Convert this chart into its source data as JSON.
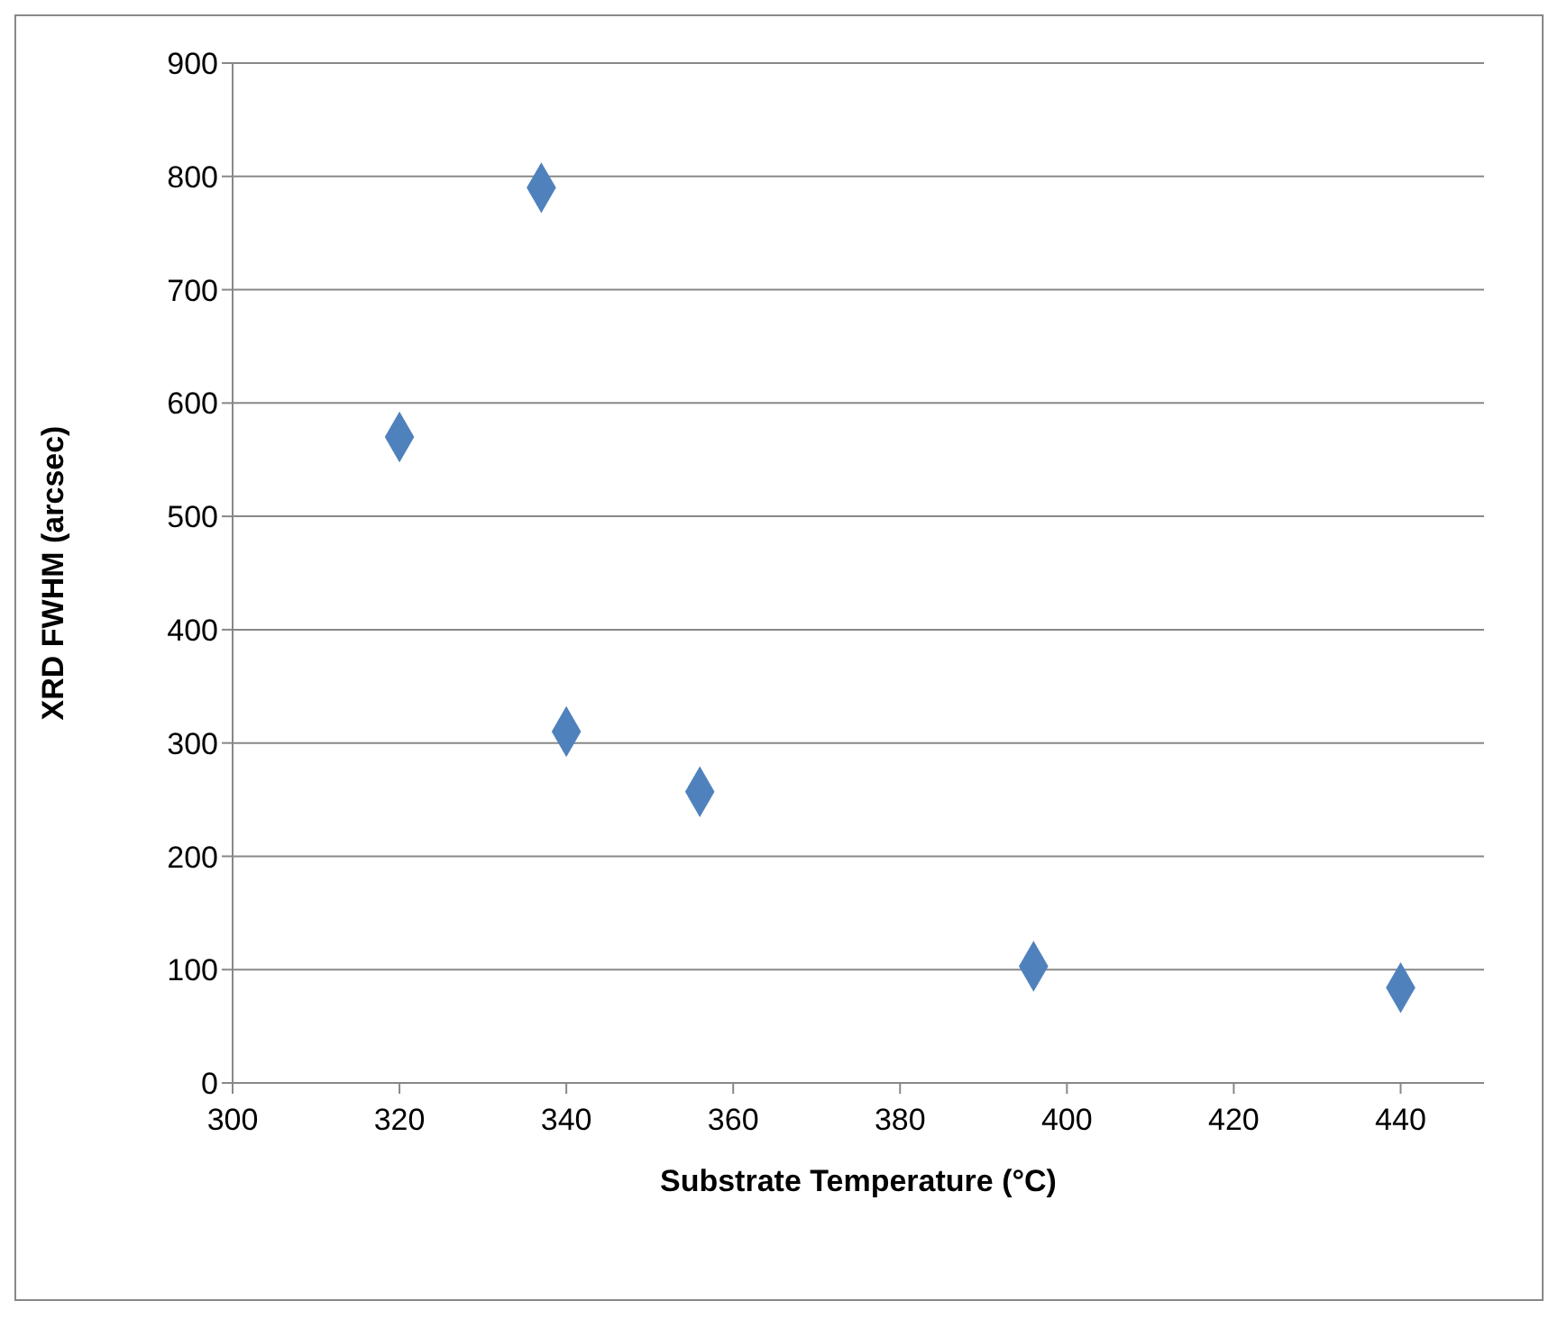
{
  "chart_data": {
    "type": "scatter",
    "xlabel": "Substrate Temperature (°C)",
    "ylabel": "XRD FWHM (arcsec)",
    "x": [
      320,
      337,
      340,
      356,
      396,
      440
    ],
    "values": [
      570,
      790,
      310,
      257,
      103,
      84
    ],
    "color": "#4f81bd",
    "xlim": [
      300,
      450
    ],
    "xticks": [
      300,
      320,
      340,
      360,
      380,
      400,
      420,
      440
    ],
    "ylim": [
      0,
      900
    ],
    "yticks": [
      0,
      100,
      200,
      300,
      400,
      500,
      600,
      700,
      800,
      900
    ],
    "grid": "y",
    "legend": false,
    "marker": "diamond"
  }
}
